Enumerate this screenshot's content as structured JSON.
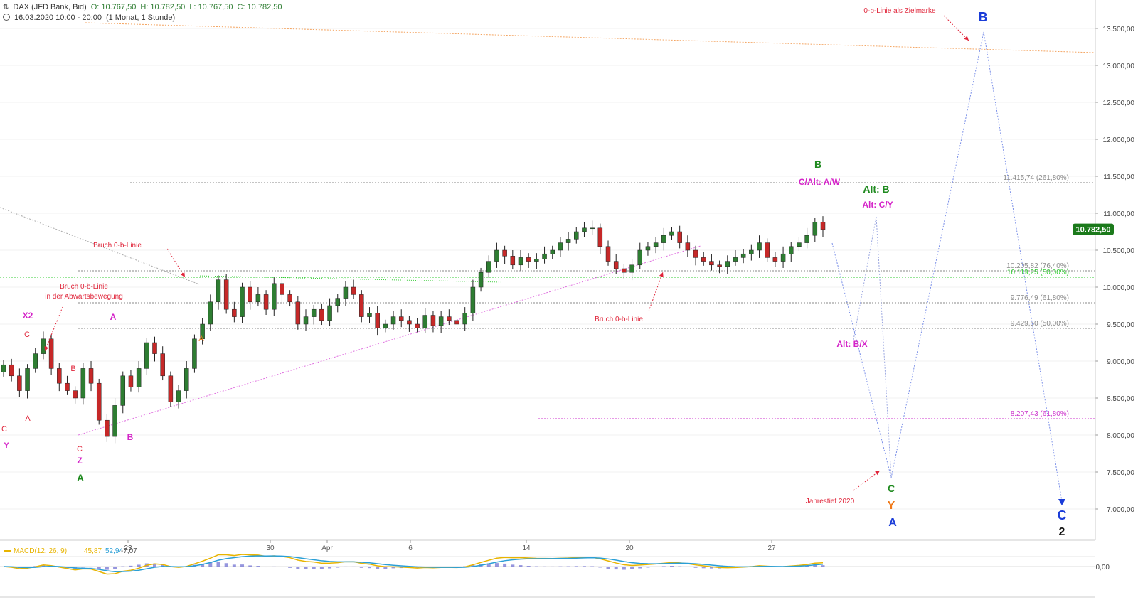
{
  "header": {
    "instrument": "DAX (JFD Bank, Bid)",
    "open": "O: 10.767,50",
    "high": "H: 10.782,50",
    "low": "L: 10.767,50",
    "close": "C: 10.782,50",
    "period": "16.03.2020 10:00 - 20:00",
    "range": "(1 Monat, 1 Stunde)"
  },
  "chart_data": {
    "type": "candlestick",
    "y_axis": {
      "ticks": [
        "13.500,00",
        "13.000,00",
        "12.500,00",
        "12.000,00",
        "11.500,00",
        "11.000,00",
        "10.500,00",
        "10.000,00",
        "9.500,00",
        "9.000,00",
        "8.500,00",
        "8.000,00",
        "7.500,00",
        "7.000,00"
      ],
      "min": 6700,
      "max": 13800
    },
    "x_axis": {
      "ticks": [
        "23",
        "30",
        "Apr",
        "6",
        "14",
        "20",
        "27"
      ]
    },
    "price_label": "10.782,50",
    "closes": [
      8950,
      8800,
      8600,
      8900,
      9100,
      9300,
      8900,
      8700,
      8600,
      8500,
      8900,
      8700,
      8200,
      7980,
      8400,
      8800,
      8650,
      8900,
      9250,
      9100,
      8800,
      8450,
      8600,
      8900,
      9300,
      9500,
      9800,
      10100,
      9700,
      9600,
      10000,
      9800,
      9900,
      9700,
      10050,
      9900,
      9800,
      9500,
      9600,
      9700,
      9550,
      9750,
      9850,
      10000,
      9900,
      9600,
      9650,
      9450,
      9500,
      9600,
      9550,
      9500,
      9450,
      9620,
      9480,
      9600,
      9550,
      9500,
      9650,
      10000,
      10200,
      10350,
      10500,
      10420,
      10300,
      10400,
      10350,
      10380,
      10450,
      10500,
      10600,
      10650,
      10750,
      10800,
      10800,
      10550,
      10350,
      10250,
      10200,
      10300,
      10500,
      10550,
      10600,
      10700,
      10750,
      10600,
      10500,
      10400,
      10350,
      10300,
      10280,
      10350,
      10400,
      10450,
      10500,
      10600,
      10400,
      10350,
      10450,
      10550,
      10600,
      10700,
      10880,
      10780
    ],
    "annotations": [
      "Bruch 0-b-Linie",
      "in der Abwärtsbewegung",
      "Bruch 0-b-Linie",
      "Bruch 0-b-Linie",
      "0-b-Linie als Zielmarke",
      "Jahrestief 2020",
      "B",
      "C/Alt: A/W",
      "Alt: B",
      "Alt: C/Y",
      "Alt: B/X",
      "C",
      "Y",
      "A",
      "C",
      "2",
      "B",
      "A",
      "B",
      "X2",
      "C",
      "A",
      "B",
      "A",
      "C",
      "Y",
      "C",
      "Z",
      "A"
    ],
    "levels": [
      {
        "label": "11.415,74 (261,80%)",
        "color": "#888888"
      },
      {
        "label": "10.205,82 (76,40%)",
        "color": "#888888"
      },
      {
        "label": "10.119,25 (50,00%)",
        "color": "#33cc33"
      },
      {
        "label": "9.776,49 (61,80%)",
        "color": "#888888"
      },
      {
        "label": "9.429,50 (50,00%)",
        "color": "#888888"
      },
      {
        "label": "8.207,43 (61,80%)",
        "color": "#cc33cc"
      }
    ],
    "macd": {
      "label": "MACD(12, 26, 9)",
      "value1": "45,87",
      "value2": "52,94",
      "value3": "-7,07",
      "zero_label": "0,00"
    },
    "colors": {
      "up": "#2e7d32",
      "down": "#c62828",
      "price_bg": "#1b7a1b",
      "grid": "#eeeeee"
    }
  }
}
